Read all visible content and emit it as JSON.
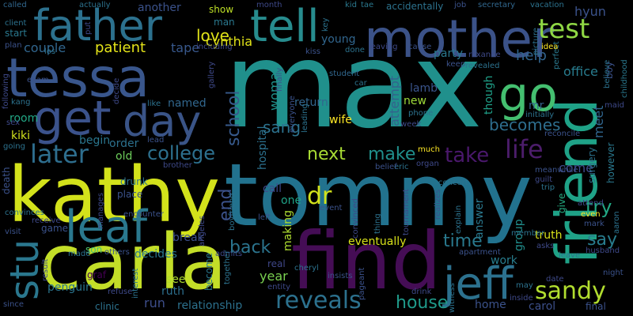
{
  "words": [
    {
      "text": "max",
      "color": "#20908c"
    },
    {
      "text": "tommy",
      "color": "#22728e"
    },
    {
      "text": "kathy",
      "color": "#d3e21b"
    },
    {
      "text": "carla",
      "color": "#c3de28"
    },
    {
      "text": "find",
      "color": "#450d55"
    },
    {
      "text": "mother",
      "color": "#3b5288"
    },
    {
      "text": "tessa",
      "color": "#39568c"
    },
    {
      "text": "friend",
      "color": "#1fa287"
    },
    {
      "text": "father",
      "color": "#2c718e"
    },
    {
      "text": "tell",
      "color": "#278c8e"
    },
    {
      "text": "get",
      "color": "#3b528b"
    },
    {
      "text": "go",
      "color": "#44bf70"
    },
    {
      "text": "day",
      "color": "#3a5487"
    },
    {
      "text": "leaf",
      "color": "#2a788e"
    },
    {
      "text": "jeff",
      "color": "#2c718e"
    },
    {
      "text": "stu",
      "color": "#2a778e"
    },
    {
      "text": "test",
      "color": "#8fd744"
    },
    {
      "text": "sandy",
      "color": "#b1dd2f"
    },
    {
      "text": "reveals",
      "color": "#2c718e"
    },
    {
      "text": "life",
      "color": "#4c1d6b"
    },
    {
      "text": "later",
      "color": "#2e6e8e"
    },
    {
      "text": "college",
      "color": "#2d708e"
    },
    {
      "text": "love",
      "color": "#e0e318"
    },
    {
      "text": "take",
      "color": "#4a186c"
    },
    {
      "text": "make",
      "color": "#20908c"
    },
    {
      "text": "next",
      "color": "#a8db34"
    },
    {
      "text": "dr",
      "color": "#d2e21b"
    },
    {
      "text": "becomes",
      "color": "#2e6e8e"
    },
    {
      "text": "school",
      "color": "#375a8c"
    },
    {
      "text": "time",
      "color": "#29798e"
    },
    {
      "text": "back",
      "color": "#2b748e"
    },
    {
      "text": "house",
      "color": "#1f9a8a"
    },
    {
      "text": "sang",
      "color": "#2c728e"
    },
    {
      "text": "end",
      "color": "#3b528b"
    },
    {
      "text": "say",
      "color": "#287d8e"
    },
    {
      "text": "try",
      "color": "#22a884"
    },
    {
      "text": "patient",
      "color": "#e5e419"
    },
    {
      "text": "couple",
      "color": "#31668e"
    },
    {
      "text": "tape",
      "color": "#38588c"
    },
    {
      "text": "help",
      "color": "#32648e"
    },
    {
      "text": "cynthia",
      "color": "#e1e318"
    },
    {
      "text": "woman",
      "color": "#20928c"
    },
    {
      "text": "attempt",
      "color": "#33628d"
    },
    {
      "text": "hospital",
      "color": "#2c718e"
    },
    {
      "text": "come",
      "color": "#3e4a89"
    },
    {
      "text": "meet",
      "color": "#31668e"
    },
    {
      "text": "office",
      "color": "#287c8e"
    },
    {
      "text": "eventually",
      "color": "#d8e219"
    },
    {
      "text": "truth",
      "color": "#d8e219"
    },
    {
      "text": "decides",
      "color": "#2a778e"
    },
    {
      "text": "break",
      "color": "#3c4f8a"
    },
    {
      "text": "year",
      "color": "#7ad151"
    },
    {
      "text": "run",
      "color": "#3d4e8a"
    },
    {
      "text": "see",
      "color": "#addc30"
    },
    {
      "text": "ruth",
      "color": "#2d6f8e"
    },
    {
      "text": "relationship",
      "color": "#2c718e"
    },
    {
      "text": "penguin",
      "color": "#2b758e"
    },
    {
      "text": "home",
      "color": "#3b528b"
    },
    {
      "text": "carol",
      "color": "#3c4f8a"
    },
    {
      "text": "group",
      "color": "#218f8d"
    },
    {
      "text": "answer",
      "color": "#2a788e"
    },
    {
      "text": "work",
      "color": "#287d8e"
    },
    {
      "text": "hyun",
      "color": "#3b528b"
    },
    {
      "text": "another",
      "color": "#3b528b"
    },
    {
      "text": "room",
      "color": "#22a785"
    },
    {
      "text": "kiki",
      "color": "#d0e11c"
    },
    {
      "text": "old",
      "color": "#6ccd5a"
    },
    {
      "text": "order",
      "color": "#2c718e"
    },
    {
      "text": "begin",
      "color": "#2a768e"
    },
    {
      "text": "named",
      "color": "#31678e"
    },
    {
      "text": "new",
      "color": "#9fda3a"
    },
    {
      "text": "lamb",
      "color": "#3a548c"
    },
    {
      "text": "wife",
      "color": "#fde725"
    },
    {
      "text": "young",
      "color": "#31668e"
    },
    {
      "text": "mr",
      "color": "#33628d"
    },
    {
      "text": "though",
      "color": "#1fa088"
    },
    {
      "text": "return",
      "color": "#31668e"
    },
    {
      "text": "party",
      "color": "#2a788e"
    },
    {
      "text": "call",
      "color": "#3e4989"
    },
    {
      "text": "one",
      "color": "#1fa287"
    },
    {
      "text": "making",
      "color": "#addc30"
    },
    {
      "text": "game",
      "color": "#3b528b"
    },
    {
      "text": "son",
      "color": "#4ac16d"
    },
    {
      "text": "clinic",
      "color": "#2c728e"
    },
    {
      "text": "become",
      "color": "#2a788e"
    },
    {
      "text": "graf",
      "color": "#440154"
    },
    {
      "text": "real",
      "color": "#3f4788"
    },
    {
      "text": "surgery",
      "color": "#2c738e"
    },
    {
      "text": "however",
      "color": "#2a788e"
    },
    {
      "text": "give",
      "color": "#25ac82"
    },
    {
      "text": "boy",
      "color": "#3b528b"
    },
    {
      "text": "show",
      "color": "#bddf26"
    },
    {
      "text": "man",
      "color": "#2a788e"
    },
    {
      "text": "including",
      "color": "#3e4989"
    },
    {
      "text": "called",
      "color": "#31678e"
    },
    {
      "text": "actually",
      "color": "#2c728e"
    },
    {
      "text": "client",
      "color": "#2c728e"
    },
    {
      "text": "start",
      "color": "#2a788e"
    },
    {
      "text": "plan",
      "color": "#3b528b"
    },
    {
      "text": "kid",
      "color": "#2a788e"
    },
    {
      "text": "tae",
      "color": "#2a788e"
    },
    {
      "text": "accidentally",
      "color": "#2c728e"
    },
    {
      "text": "job",
      "color": "#3b528b"
    },
    {
      "text": "secretary",
      "color": "#31678e"
    },
    {
      "text": "vacation",
      "color": "#2c728e"
    },
    {
      "text": "month",
      "color": "#3e4989"
    },
    {
      "text": "key",
      "color": "#2c728e"
    },
    {
      "text": "done",
      "color": "#2c728e"
    },
    {
      "text": "roxanne",
      "color": "#3e4989"
    },
    {
      "text": "perfect",
      "color": "#2a788e"
    },
    {
      "text": "picture",
      "color": "#2c728e"
    },
    {
      "text": "revealed",
      "color": "#2c728e"
    },
    {
      "text": "idea",
      "color": "#fde725"
    },
    {
      "text": "childhood",
      "color": "#2a788e"
    },
    {
      "text": "kiss",
      "color": "#3b528b"
    },
    {
      "text": "leaving",
      "color": "#3e4989"
    },
    {
      "text": "cause",
      "color": "#3b528b"
    },
    {
      "text": "los",
      "color": "#2c728e"
    },
    {
      "text": "put",
      "color": "#3e4989"
    },
    {
      "text": "student",
      "color": "#31678e"
    },
    {
      "text": "car",
      "color": "#2c728e"
    },
    {
      "text": "finally",
      "color": "#3b528b"
    },
    {
      "text": "gallery",
      "color": "#3e4989"
    },
    {
      "text": "like",
      "color": "#2c728e"
    },
    {
      "text": "lead",
      "color": "#3b528b"
    },
    {
      "text": "brother",
      "color": "#3e4989"
    },
    {
      "text": "leading",
      "color": "#2c728e"
    },
    {
      "text": "everyone",
      "color": "#3b528b"
    },
    {
      "text": "phone",
      "color": "#2c728e"
    },
    {
      "text": "week",
      "color": "#3e4989"
    },
    {
      "text": "initially",
      "color": "#2c728e"
    },
    {
      "text": "reconcile",
      "color": "#3b528b"
    },
    {
      "text": "maid",
      "color": "#3e4989"
    },
    {
      "text": "believe",
      "color": "#2c728e"
    },
    {
      "text": "keep",
      "color": "#3b528b"
    },
    {
      "text": "following",
      "color": "#3e4989"
    },
    {
      "text": "exam",
      "color": "#3b528b"
    },
    {
      "text": "kang",
      "color": "#2c728e"
    },
    {
      "text": "sex",
      "color": "#3e4989"
    },
    {
      "text": "going",
      "color": "#2c728e"
    },
    {
      "text": "death",
      "color": "#3b528b"
    },
    {
      "text": "manages",
      "color": "#3e4989"
    },
    {
      "text": "drunk",
      "color": "#2c728e"
    },
    {
      "text": "place",
      "color": "#3b528b"
    },
    {
      "text": "angeles",
      "color": "#3e4989"
    },
    {
      "text": "boyfriend",
      "color": "#2c728e"
    },
    {
      "text": "left",
      "color": "#3b528b"
    },
    {
      "text": "entity",
      "color": "#3e4989"
    },
    {
      "text": "eric",
      "color": "#2c728e"
    },
    {
      "text": "belief",
      "color": "#3b528b"
    },
    {
      "text": "much",
      "color": "#fde725"
    },
    {
      "text": "organ",
      "color": "#3e4989"
    },
    {
      "text": "concert",
      "color": "#2c728e"
    },
    {
      "text": "event",
      "color": "#3b528b"
    },
    {
      "text": "convinced",
      "color": "#3e4989"
    },
    {
      "text": "thing",
      "color": "#2c728e"
    },
    {
      "text": "realizes",
      "color": "#3b528b"
    },
    {
      "text": "tournament",
      "color": "#3e4989"
    },
    {
      "text": "explain",
      "color": "#2c728e"
    },
    {
      "text": "meanwhile",
      "color": "#3b528b"
    },
    {
      "text": "guilt",
      "color": "#3e4989"
    },
    {
      "text": "trip",
      "color": "#2c728e"
    },
    {
      "text": "even",
      "color": "#fde725"
    },
    {
      "text": "attend",
      "color": "#3e4989"
    },
    {
      "text": "aaron",
      "color": "#2c728e"
    },
    {
      "text": "mark",
      "color": "#3b528b"
    },
    {
      "text": "husband",
      "color": "#3e4989"
    },
    {
      "text": "member",
      "color": "#2c728e"
    },
    {
      "text": "apartment",
      "color": "#3b528b"
    },
    {
      "text": "asks",
      "color": "#3e4989"
    },
    {
      "text": "leave",
      "color": "#2c728e"
    },
    {
      "text": "night",
      "color": "#3b528b"
    },
    {
      "text": "date",
      "color": "#3e4989"
    },
    {
      "text": "may",
      "color": "#2c728e"
    },
    {
      "text": "final",
      "color": "#3b528b"
    },
    {
      "text": "inside",
      "color": "#3e4989"
    },
    {
      "text": "witness",
      "color": "#2c728e"
    },
    {
      "text": "pageant",
      "color": "#3b528b"
    },
    {
      "text": "drink",
      "color": "#3e4989"
    },
    {
      "text": "cheryl",
      "color": "#2c728e"
    },
    {
      "text": "insists",
      "color": "#3b528b"
    },
    {
      "text": "admits",
      "color": "#3e4989"
    },
    {
      "text": "together",
      "color": "#2c728e"
    },
    {
      "text": "encounter",
      "color": "#3b528b"
    },
    {
      "text": "receive",
      "color": "#3e4989"
    },
    {
      "text": "convinces",
      "color": "#2c728e"
    },
    {
      "text": "visit",
      "color": "#3b528b"
    },
    {
      "text": "result",
      "color": "#3e4989"
    },
    {
      "text": "made",
      "color": "#2c728e"
    },
    {
      "text": "others",
      "color": "#3b528b"
    },
    {
      "text": "refuse",
      "color": "#3e4989"
    },
    {
      "text": "interest",
      "color": "#2c728e"
    },
    {
      "text": "since",
      "color": "#3b528b"
    },
    {
      "text": "decide",
      "color": "#3e4989"
    }
  ]
}
